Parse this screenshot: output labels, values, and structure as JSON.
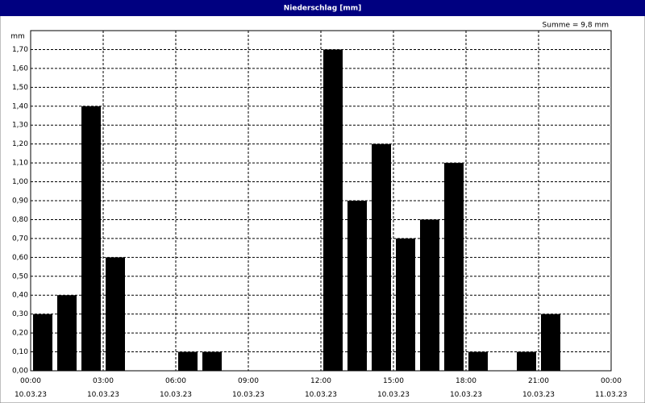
{
  "chart_data": {
    "type": "bar",
    "title": "Niederschlag [mm]",
    "annotation": "Summe = 9,8 mm",
    "y_label": "mm",
    "x": [
      0.5,
      1.5,
      2.5,
      3.5,
      4.5,
      5.5,
      6.5,
      7.5,
      8.5,
      9.5,
      10.5,
      11.5,
      12.5,
      13.5,
      14.5,
      15.5,
      16.5,
      17.5,
      18.5,
      19.5,
      20.5,
      21.5,
      22.5,
      23.5
    ],
    "values": [
      0.3,
      0.4,
      1.4,
      0.6,
      0,
      0,
      0.1,
      0.1,
      0,
      0,
      0,
      0,
      1.7,
      0.9,
      1.2,
      0.7,
      0.8,
      1.1,
      0.1,
      0,
      0.1,
      0.3,
      0,
      0
    ],
    "color": "#000000",
    "xlim": [
      0,
      24
    ],
    "xticks": [
      {
        "value": 0,
        "label": "00:00\n10.03.23"
      },
      {
        "value": 3,
        "label": "03:00\n10.03.23"
      },
      {
        "value": 6,
        "label": "06:00\n10.03.23"
      },
      {
        "value": 9,
        "label": "09:00\n10.03.23"
      },
      {
        "value": 12,
        "label": "12:00\n10.03.23"
      },
      {
        "value": 15,
        "label": "15:00\n10.03.23"
      },
      {
        "value": 18,
        "label": "18:00\n10.03.23"
      },
      {
        "value": 21,
        "label": "21:00\n10.03.23"
      },
      {
        "value": 24,
        "label": "00:00\n11.03.23"
      }
    ],
    "ylim": [
      0,
      1.8
    ],
    "yticks": [
      {
        "value": 0,
        "label": "0,00"
      },
      {
        "value": 0.1,
        "label": "0,10"
      },
      {
        "value": 0.2,
        "label": "0,20"
      },
      {
        "value": 0.3,
        "label": "0,30"
      },
      {
        "value": 0.4,
        "label": "0,40"
      },
      {
        "value": 0.5,
        "label": "0,50"
      },
      {
        "value": 0.6,
        "label": "0,60"
      },
      {
        "value": 0.7,
        "label": "0,70"
      },
      {
        "value": 0.8,
        "label": "0,80"
      },
      {
        "value": 0.9,
        "label": "0,90"
      },
      {
        "value": 1.0,
        "label": "1,00"
      },
      {
        "value": 1.1,
        "label": "1,10"
      },
      {
        "value": 1.2,
        "label": "1,20"
      },
      {
        "value": 1.3,
        "label": "1,30"
      },
      {
        "value": 1.4,
        "label": "1,40"
      },
      {
        "value": 1.5,
        "label": "1,50"
      },
      {
        "value": 1.6,
        "label": "1,60"
      },
      {
        "value": 1.7,
        "label": "1,70"
      }
    ],
    "grid": true
  }
}
